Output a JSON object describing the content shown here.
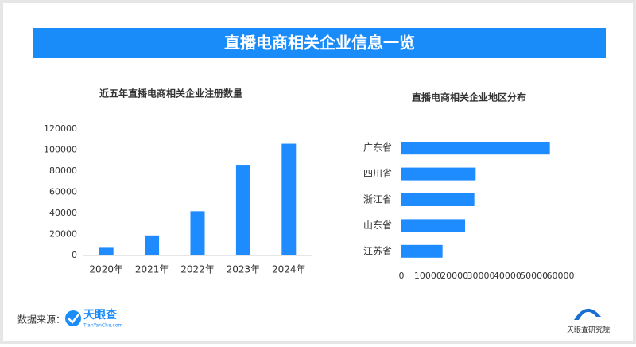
{
  "header": {
    "title": "直播电商相关企业信息一览"
  },
  "chart_data": [
    {
      "type": "bar",
      "title": "近五年直播电商相关企业注册数量",
      "categories": [
        "2020年",
        "2021年",
        "2022年",
        "2023年",
        "2024年"
      ],
      "values": [
        8000,
        19000,
        42000,
        86000,
        106000
      ],
      "color": "#1e8cff",
      "ylim": [
        0,
        120000
      ],
      "yticks": [
        0,
        20000,
        40000,
        60000,
        80000,
        100000,
        120000
      ],
      "grid": false
    },
    {
      "type": "barh",
      "title": "直播电商相关企业地区分布",
      "categories": [
        "广东省",
        "四川省",
        "浙江省",
        "山东省",
        "江苏省"
      ],
      "values": [
        56000,
        28000,
        27500,
        24000,
        15500
      ],
      "color": "#1e8cff",
      "xlim": [
        0,
        60000
      ],
      "xticks": [
        0,
        10000,
        20000,
        30000,
        40000,
        50000,
        60000
      ],
      "grid": false
    }
  ],
  "footer": {
    "source_label": "数据来源：",
    "logo_name": "天眼查",
    "logo_url": "TianYanCha.com",
    "brand": "天眼查研究院"
  }
}
